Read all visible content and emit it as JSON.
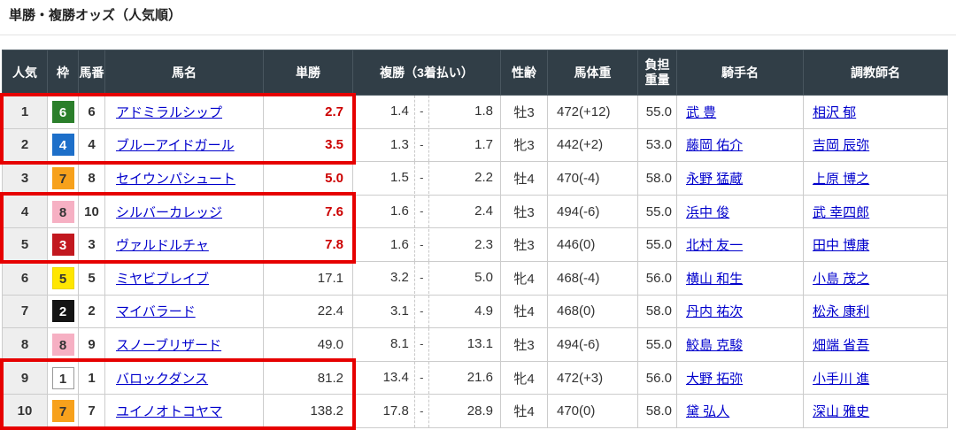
{
  "page": {
    "title": "単勝・複勝オッズ（人気順）"
  },
  "table": {
    "columns": [
      "人気",
      "枠",
      "馬番",
      "馬名",
      "単勝",
      "複勝（3着払い）",
      "性齢",
      "馬体重",
      "負担\n重量",
      "騎手名",
      "調教師名"
    ],
    "place_separator": "-",
    "rows": [
      {
        "popularity": "1",
        "frame": 6,
        "horse_number": "6",
        "horse_name": "アドミラルシップ",
        "win_odds": "2.7",
        "win_hot": true,
        "place_low": "1.4",
        "place_high": "1.8",
        "sex_age": "牡3",
        "horse_weight": "472(+12)",
        "load_weight": "55.0",
        "jockey": "武 豊",
        "trainer": "相沢 郁"
      },
      {
        "popularity": "2",
        "frame": 4,
        "horse_number": "4",
        "horse_name": "ブルーアイドガール",
        "win_odds": "3.5",
        "win_hot": true,
        "place_low": "1.3",
        "place_high": "1.7",
        "sex_age": "牝3",
        "horse_weight": "442(+2)",
        "load_weight": "53.0",
        "jockey": "藤岡 佑介",
        "trainer": "吉岡 辰弥"
      },
      {
        "popularity": "3",
        "frame": 7,
        "horse_number": "8",
        "horse_name": "セイウンパシュート",
        "win_odds": "5.0",
        "win_hot": true,
        "place_low": "1.5",
        "place_high": "2.2",
        "sex_age": "牡4",
        "horse_weight": "470(-4)",
        "load_weight": "58.0",
        "jockey": "永野 猛蔵",
        "trainer": "上原 博之"
      },
      {
        "popularity": "4",
        "frame": 8,
        "horse_number": "10",
        "horse_name": "シルバーカレッジ",
        "win_odds": "7.6",
        "win_hot": true,
        "place_low": "1.6",
        "place_high": "2.4",
        "sex_age": "牡3",
        "horse_weight": "494(-6)",
        "load_weight": "55.0",
        "jockey": "浜中 俊",
        "trainer": "武 幸四郎"
      },
      {
        "popularity": "5",
        "frame": 3,
        "horse_number": "3",
        "horse_name": "ヴァルドルチャ",
        "win_odds": "7.8",
        "win_hot": true,
        "place_low": "1.6",
        "place_high": "2.3",
        "sex_age": "牡3",
        "horse_weight": "446(0)",
        "load_weight": "55.0",
        "jockey": "北村 友一",
        "trainer": "田中 博康"
      },
      {
        "popularity": "6",
        "frame": 5,
        "horse_number": "5",
        "horse_name": "ミヤビブレイブ",
        "win_odds": "17.1",
        "win_hot": false,
        "place_low": "3.2",
        "place_high": "5.0",
        "sex_age": "牝4",
        "horse_weight": "468(-4)",
        "load_weight": "56.0",
        "jockey": "横山 和生",
        "trainer": "小島 茂之"
      },
      {
        "popularity": "7",
        "frame": 2,
        "horse_number": "2",
        "horse_name": "マイバラード",
        "win_odds": "22.4",
        "win_hot": false,
        "place_low": "3.1",
        "place_high": "4.9",
        "sex_age": "牡4",
        "horse_weight": "468(0)",
        "load_weight": "58.0",
        "jockey": "丹内 祐次",
        "trainer": "松永 康利"
      },
      {
        "popularity": "8",
        "frame": 8,
        "horse_number": "9",
        "horse_name": "スノーブリザード",
        "win_odds": "49.0",
        "win_hot": false,
        "place_low": "8.1",
        "place_high": "13.1",
        "sex_age": "牡3",
        "horse_weight": "494(-6)",
        "load_weight": "55.0",
        "jockey": "鮫島 克駿",
        "trainer": "畑端 省吾"
      },
      {
        "popularity": "9",
        "frame": 1,
        "horse_number": "1",
        "horse_name": "バロックダンス",
        "win_odds": "81.2",
        "win_hot": false,
        "place_low": "13.4",
        "place_high": "21.6",
        "sex_age": "牝4",
        "horse_weight": "472(+3)",
        "load_weight": "56.0",
        "jockey": "大野 拓弥",
        "trainer": "小手川 進"
      },
      {
        "popularity": "10",
        "frame": 7,
        "horse_number": "7",
        "horse_name": "ユイノオトコヤマ",
        "win_odds": "138.2",
        "win_hot": false,
        "place_low": "17.8",
        "place_high": "28.9",
        "sex_age": "牡4",
        "horse_weight": "470(0)",
        "load_weight": "58.0",
        "jockey": "黛 弘人",
        "trainer": "深山 雅史"
      }
    ],
    "highlight_groups": [
      [
        1,
        2
      ],
      [
        4,
        5
      ],
      [
        9,
        10
      ]
    ]
  },
  "colors": {
    "header_bg": "#313e47",
    "highlight_border": "#e60000",
    "hot_odds": "#cc0000",
    "link": "#0000cc",
    "frames": {
      "1": {
        "bg": "#ffffff",
        "text": "#333333",
        "border": "#999999"
      },
      "2": {
        "bg": "#141414",
        "text": "#ffffff",
        "border": "#141414"
      },
      "3": {
        "bg": "#c2181f",
        "text": "#ffffff",
        "border": "#c2181f"
      },
      "4": {
        "bg": "#1d6fc9",
        "text": "#ffffff",
        "border": "#1d6fc9"
      },
      "5": {
        "bg": "#ffe600",
        "text": "#333333",
        "border": "#eed700"
      },
      "6": {
        "bg": "#2b7f2b",
        "text": "#ffffff",
        "border": "#2b7f2b"
      },
      "7": {
        "bg": "#f7a11c",
        "text": "#333333",
        "border": "#f7a11c"
      },
      "8": {
        "bg": "#f6b0c3",
        "text": "#333333",
        "border": "#f6b0c3"
      }
    }
  }
}
